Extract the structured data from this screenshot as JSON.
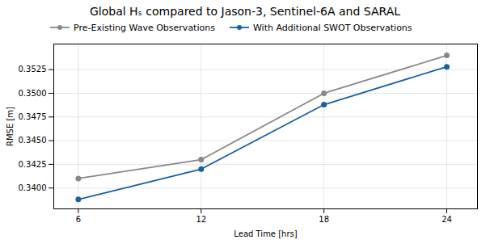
{
  "chart_data": {
    "type": "line",
    "title": "Global Hₛ compared to Jason-3, Sentinel-6A and SARAL",
    "xlabel": "Lead Time [hrs]",
    "ylabel": "RMSE [m]",
    "x": [
      6,
      12,
      18,
      24
    ],
    "series": [
      {
        "name": "Pre-Existing Wave Observations",
        "color": "#888888",
        "values": [
          0.341,
          0.343,
          0.35,
          0.354
        ]
      },
      {
        "name": "With Additional SWOT Observations",
        "color": "#1a5fa8",
        "values": [
          0.3388,
          0.342,
          0.3488,
          0.3528
        ]
      }
    ],
    "xlim": [
      4.8,
      25.5
    ],
    "ylim": [
      0.3378,
      0.3552
    ],
    "xticks": [
      6,
      12,
      18,
      24
    ],
    "yticks": [
      {
        "value": 0.34,
        "label": "0.3400"
      },
      0.3425,
      {
        "value": 0.345,
        "label": "0.3450"
      },
      0.3475,
      {
        "value": 0.35,
        "label": "0.3500"
      },
      0.3525
    ],
    "grid": true,
    "legend": "upper left",
    "marker": "circle"
  }
}
